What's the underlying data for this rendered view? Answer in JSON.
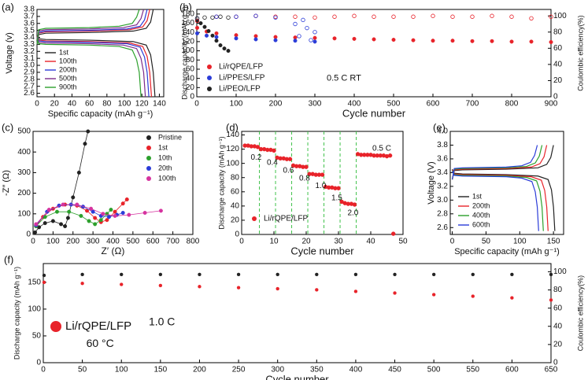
{
  "chart_data": [
    {
      "type": "line",
      "label": "(a)",
      "xlabel": "Specific capacity (mAh g⁻¹)",
      "ylabel": "Voltage (v)",
      "xlim": [
        0,
        145
      ],
      "ylim": [
        2.55,
        3.8
      ],
      "xticks": [
        0,
        20,
        40,
        60,
        80,
        100,
        120,
        140
      ],
      "yticks": [
        2.6,
        2.7,
        2.8,
        2.9,
        {
          "value": 3,
          "label": "3.0"
        },
        3.1,
        3.2,
        3.3,
        3.4,
        3.5,
        3.6,
        3.7,
        3.8
      ],
      "legend": "lower left",
      "series": [
        {
          "name": "1st",
          "color": "#222222",
          "x": [
            0,
            2,
            10,
            60,
            110,
            125,
            130,
            133,
            null,
            0,
            2,
            10,
            60,
            110,
            125,
            130,
            133,
            135
          ],
          "values": [
            3.3,
            3.44,
            3.46,
            3.47,
            3.49,
            3.53,
            3.62,
            3.8,
            null,
            3.42,
            3.38,
            3.37,
            3.36,
            3.34,
            3.29,
            3.15,
            2.9,
            2.55
          ]
        },
        {
          "name": "100th",
          "color": "#e8232a",
          "x": [
            0,
            2,
            10,
            60,
            106,
            121,
            126,
            129,
            null,
            0,
            2,
            10,
            60,
            106,
            121,
            126,
            129,
            131
          ],
          "values": [
            3.3,
            3.46,
            3.48,
            3.49,
            3.51,
            3.55,
            3.64,
            3.8,
            null,
            3.41,
            3.36,
            3.35,
            3.34,
            3.32,
            3.27,
            3.13,
            2.9,
            2.55
          ]
        },
        {
          "name": "200th",
          "color": "#2b3cd8",
          "x": [
            0,
            2,
            10,
            60,
            103,
            118,
            123,
            126,
            null,
            0,
            2,
            10,
            60,
            103,
            118,
            123,
            126,
            128
          ],
          "values": [
            3.3,
            3.47,
            3.49,
            3.5,
            3.52,
            3.56,
            3.65,
            3.8,
            null,
            3.4,
            3.35,
            3.34,
            3.33,
            3.31,
            3.26,
            3.12,
            2.9,
            2.55
          ]
        },
        {
          "name": "500th",
          "color": "#7b2a8a",
          "x": [
            0,
            2,
            10,
            60,
            99,
            114,
            119,
            122,
            null,
            0,
            2,
            10,
            60,
            99,
            114,
            119,
            122,
            124
          ],
          "values": [
            3.3,
            3.49,
            3.51,
            3.52,
            3.54,
            3.58,
            3.67,
            3.8,
            null,
            3.39,
            3.33,
            3.32,
            3.31,
            3.29,
            3.24,
            3.1,
            2.9,
            2.55
          ]
        },
        {
          "name": "900th",
          "color": "#2ca02c",
          "x": [
            0,
            2,
            10,
            60,
            94,
            109,
            114,
            117,
            null,
            0,
            2,
            10,
            60,
            94,
            109,
            114,
            117,
            119
          ],
          "values": [
            3.3,
            3.51,
            3.53,
            3.54,
            3.56,
            3.6,
            3.69,
            3.8,
            null,
            3.38,
            3.31,
            3.3,
            3.29,
            3.27,
            3.22,
            3.08,
            2.9,
            2.55
          ]
        }
      ]
    },
    {
      "type": "scatter",
      "label": "(b)",
      "xlabel": "Cycle number",
      "ylabel": "Discharge capacity (mAh g⁻¹)",
      "y2label": "Coulombic efficiency(%)",
      "xlim": [
        0,
        900
      ],
      "ylim": [
        0,
        190
      ],
      "y2lim": [
        0,
        108
      ],
      "xticks": [
        0,
        100,
        200,
        300,
        400,
        500,
        600,
        700,
        800,
        900
      ],
      "yticks": [
        0,
        20,
        40,
        60,
        80,
        100,
        120,
        140,
        160,
        180
      ],
      "y2ticks": [
        0,
        20,
        40,
        60,
        80,
        100
      ],
      "legend": "lower left",
      "annotations": [
        "0.5 C RT"
      ],
      "series": [
        {
          "name": "Li/rQPE/LFP",
          "color": "#e8232a",
          "x": [
            1,
            25,
            50,
            100,
            150,
            200,
            250,
            300,
            350,
            400,
            450,
            500,
            550,
            600,
            650,
            700,
            750,
            800,
            850,
            900
          ],
          "values": [
            150,
            142,
            138,
            134,
            132,
            130,
            129,
            128,
            127,
            126,
            125,
            124,
            123,
            122,
            122,
            121,
            121,
            120,
            120,
            119
          ]
        },
        {
          "name": "Li/PPES/LFP",
          "color": "#2b3cd8",
          "x": [
            1,
            25,
            50,
            100,
            150,
            200,
            250,
            300
          ],
          "values": [
            138,
            133,
            130,
            127,
            125,
            123,
            122,
            120
          ]
        },
        {
          "name": "Li/PEO/LFP",
          "color": "#222222",
          "x": [
            1,
            10,
            20,
            30,
            40,
            50,
            60,
            70,
            80
          ],
          "values": [
            165,
            160,
            152,
            143,
            133,
            122,
            112,
            105,
            100
          ]
        },
        {
          "color": "#e8232a",
          "axis": "y2",
          "marker": "open",
          "x": [
            1,
            50,
            100,
            150,
            200,
            250,
            300,
            350,
            400,
            450,
            500,
            550,
            600,
            650,
            700,
            750,
            800,
            850,
            900
          ],
          "values": [
            94,
            99,
            99,
            100,
            99,
            99,
            98,
            99,
            100,
            99,
            99,
            99,
            100,
            99,
            99,
            100,
            99,
            97,
            99
          ]
        },
        {
          "color": "#2b3cd8",
          "axis": "y2",
          "marker": "open",
          "x": [
            1,
            50,
            100,
            150,
            200,
            250,
            260,
            270,
            280,
            290,
            300
          ],
          "values": [
            97,
            99,
            99,
            100,
            98,
            90,
            75,
            95,
            85,
            70,
            80
          ]
        },
        {
          "color": "#222222",
          "axis": "y2",
          "marker": "open",
          "x": [
            1,
            20,
            40,
            60,
            80
          ],
          "values": [
            97,
            98,
            98,
            99,
            98
          ]
        }
      ]
    },
    {
      "type": "scatter",
      "label": "(c)",
      "xlabel": "Z′ (Ω)",
      "ylabel": "-Z″ (Ω)",
      "connect": true,
      "xlim": [
        0,
        800
      ],
      "ylim": [
        0,
        500
      ],
      "xticks": [
        0,
        100,
        200,
        300,
        400,
        500,
        600,
        700,
        800
      ],
      "yticks": [
        0,
        100,
        200,
        300,
        400,
        500
      ],
      "legend": "upper right",
      "series": [
        {
          "name": "Pristine",
          "color": "#222222",
          "x": [
            10,
            30,
            60,
            100,
            140,
            160,
            175,
            200,
            230,
            260,
            275
          ],
          "values": [
            10,
            35,
            55,
            65,
            50,
            40,
            80,
            180,
            300,
            440,
            500
          ]
        },
        {
          "name": "1st",
          "color": "#e8232a",
          "x": [
            15,
            50,
            100,
            160,
            220,
            270,
            310,
            340,
            370,
            410,
            450,
            470
          ],
          "values": [
            40,
            85,
            125,
            145,
            140,
            115,
            80,
            60,
            70,
            110,
            150,
            170
          ]
        },
        {
          "name": "10th",
          "color": "#2ca02c",
          "x": [
            15,
            60,
            120,
            180,
            240,
            280,
            310,
            340,
            370,
            390
          ],
          "values": [
            40,
            85,
            110,
            110,
            90,
            65,
            50,
            70,
            100,
            120
          ]
        },
        {
          "name": "20th",
          "color": "#2b3cd8",
          "x": [
            15,
            70,
            130,
            190,
            250,
            300,
            340,
            380,
            420,
            450
          ],
          "values": [
            45,
            110,
            140,
            145,
            135,
            110,
            90,
            85,
            95,
            105
          ]
        },
        {
          "name": "100th",
          "color": "#d6339f",
          "x": [
            15,
            80,
            150,
            220,
            290,
            350,
            410,
            480,
            560,
            640
          ],
          "values": [
            50,
            120,
            145,
            145,
            125,
            100,
            90,
            95,
            105,
            115
          ]
        }
      ]
    },
    {
      "type": "scatter",
      "label": "(d)",
      "xlabel": "Cycle number",
      "ylabel": "Discharge capacity (mAh g⁻¹)",
      "xlim": [
        0,
        50
      ],
      "ylim": [
        0,
        145
      ],
      "xticks": [
        0,
        10,
        20,
        30,
        40,
        50
      ],
      "yticks": [
        0,
        20,
        40,
        60,
        80,
        100,
        120,
        140
      ],
      "vlines": [
        5.5,
        10.5,
        15.5,
        20.5,
        25.5,
        30.5,
        35.5
      ],
      "legend": "lower left",
      "annotations": [
        "0.2",
        "0.4",
        "0.6",
        "0.8",
        "1.0",
        "1.5",
        "2.0",
        "0.5 C"
      ],
      "series": [
        {
          "name": "Li/rQPE/LFP",
          "color": "#e8232a",
          "x": [
            1,
            2,
            3,
            4,
            5,
            6,
            7,
            8,
            9,
            10,
            11,
            12,
            13,
            14,
            15,
            16,
            17,
            18,
            19,
            20,
            21,
            22,
            23,
            24,
            25,
            26,
            27,
            28,
            29,
            30,
            31,
            32,
            33,
            34,
            35,
            36,
            37,
            38,
            39,
            40,
            41,
            42,
            43,
            44,
            45,
            46,
            47
          ],
          "values": [
            125,
            125,
            124,
            124,
            123,
            120,
            120,
            119,
            119,
            118,
            108,
            107,
            107,
            106,
            106,
            97,
            96,
            96,
            95,
            95,
            85,
            85,
            84,
            84,
            84,
            67,
            66,
            66,
            65,
            65,
            46,
            44,
            43,
            43,
            42,
            113,
            112,
            112,
            112,
            112,
            111,
            111,
            111,
            111,
            110,
            111,
            1
          ]
        }
      ]
    },
    {
      "type": "line",
      "label": "(e)",
      "xlabel": "Specific capacity (mAh g⁻¹)",
      "ylabel": "Voltage (V)",
      "xlim": [
        -3,
        165
      ],
      "ylim": [
        2.5,
        4.0
      ],
      "xticks": [
        0,
        50,
        100,
        150
      ],
      "yticks": [
        2.6,
        2.8,
        {
          "value": 3,
          "label": "3.0"
        },
        3.2,
        3.4,
        3.6,
        3.8,
        {
          "value": 4,
          "label": "4.0"
        }
      ],
      "legend": "lower left",
      "series": [
        {
          "name": "1st",
          "color": "#222222",
          "x": [
            0,
            3,
            15,
            80,
            127,
            140,
            146,
            150,
            null,
            0,
            3,
            15,
            80,
            127,
            142,
            147,
            150,
            152
          ],
          "values": [
            3.3,
            3.43,
            3.44,
            3.45,
            3.47,
            3.52,
            3.62,
            3.8,
            null,
            3.45,
            3.39,
            3.38,
            3.37,
            3.35,
            3.3,
            3.15,
            2.9,
            2.55
          ]
        },
        {
          "name": "200th",
          "color": "#e8232a",
          "x": [
            0,
            3,
            15,
            80,
            117,
            130,
            136,
            140,
            null,
            0,
            3,
            15,
            80,
            117,
            132,
            137,
            140,
            142
          ],
          "values": [
            3.3,
            3.44,
            3.45,
            3.46,
            3.48,
            3.53,
            3.63,
            3.8,
            null,
            3.44,
            3.38,
            3.37,
            3.36,
            3.34,
            3.29,
            3.14,
            2.9,
            2.55
          ]
        },
        {
          "name": "400th",
          "color": "#2ca02c",
          "x": [
            0,
            3,
            15,
            80,
            110,
            123,
            129,
            133,
            null,
            0,
            3,
            15,
            80,
            110,
            125,
            130,
            133,
            135
          ],
          "values": [
            3.3,
            3.45,
            3.46,
            3.47,
            3.49,
            3.54,
            3.64,
            3.8,
            null,
            3.43,
            3.37,
            3.36,
            3.35,
            3.33,
            3.28,
            3.13,
            2.9,
            2.55
          ]
        },
        {
          "name": "600th",
          "color": "#2b3cd8",
          "x": [
            0,
            3,
            15,
            80,
            103,
            116,
            122,
            126,
            null,
            0,
            3,
            15,
            80,
            103,
            118,
            123,
            126,
            128
          ],
          "values": [
            3.3,
            3.46,
            3.47,
            3.48,
            3.5,
            3.55,
            3.65,
            3.8,
            null,
            3.42,
            3.36,
            3.35,
            3.34,
            3.32,
            3.27,
            3.12,
            2.9,
            2.55
          ]
        }
      ]
    },
    {
      "type": "scatter",
      "label": "(f)",
      "xlabel": "Cycle number",
      "ylabel": "Discharge capacity (mAh g⁻¹)",
      "y2label": "Coulombic efficiency(%)",
      "xlim": [
        0,
        650
      ],
      "ylim": [
        0,
        185
      ],
      "y2lim": [
        0,
        109
      ],
      "xticks": [
        0,
        50,
        100,
        150,
        200,
        250,
        300,
        350,
        400,
        450,
        500,
        550,
        600,
        650
      ],
      "yticks": [
        0,
        50,
        100,
        150
      ],
      "y2ticks": [
        0,
        20,
        40,
        60,
        80,
        100
      ],
      "legend": "lower left",
      "annotations": [
        "1.0 C",
        "60 °C"
      ],
      "series": [
        {
          "name": "Li/rQPE/LFP",
          "color": "#e8232a",
          "x": [
            1,
            50,
            100,
            150,
            200,
            250,
            300,
            350,
            400,
            450,
            500,
            550,
            600,
            650
          ],
          "values": [
            150,
            148,
            146,
            144,
            142,
            140,
            138,
            136,
            133,
            130,
            127,
            124,
            121,
            117
          ]
        },
        {
          "color": "#222222",
          "axis": "y2",
          "x": [
            1,
            50,
            100,
            150,
            200,
            250,
            300,
            350,
            400,
            450,
            500,
            550,
            600,
            650
          ],
          "values": [
            96,
            97,
            97,
            97,
            97,
            97,
            97,
            97,
            97,
            97,
            97,
            97,
            97,
            97
          ]
        }
      ]
    }
  ]
}
